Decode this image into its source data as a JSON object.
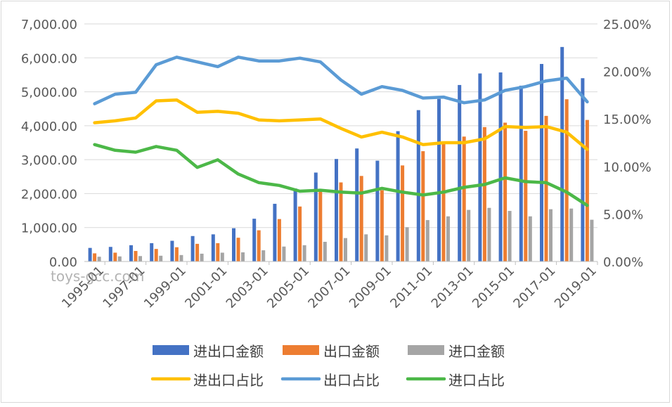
{
  "chart_data": {
    "type": "bar+line",
    "x": [
      "1995-01",
      "1996-01",
      "1997-01",
      "1998-01",
      "1999-01",
      "2000-01",
      "2001-01",
      "2002-01",
      "2003-01",
      "2004-01",
      "2005-01",
      "2006-01",
      "2007-01",
      "2008-01",
      "2009-01",
      "2010-01",
      "2011-01",
      "2012-01",
      "2013-01",
      "2014-01",
      "2015-01",
      "2016-01",
      "2017-01",
      "2018-01",
      "2019-01"
    ],
    "x_tick_labels": [
      "1995-01",
      "1997-01",
      "1999-01",
      "2001-01",
      "2003-01",
      "2005-01",
      "2007-01",
      "2009-01",
      "2011-01",
      "2013-01",
      "2015-01",
      "2017-01",
      "2019-01"
    ],
    "y_left": {
      "ylim": [
        0,
        7000
      ],
      "ticks": [
        "0.00",
        "1,000.00",
        "2,000.00",
        "3,000.00",
        "4,000.00",
        "5,000.00",
        "6,000.00",
        "7,000.00"
      ]
    },
    "y_right": {
      "ylim": [
        0,
        25
      ],
      "ticks": [
        "0.00%",
        "5.00%",
        "10.00%",
        "15.00%",
        "20.00%",
        "25.00%"
      ]
    },
    "bar_series": [
      {
        "name": "进出口金额",
        "color": "#4472c4",
        "values": [
          400,
          430,
          480,
          540,
          610,
          750,
          800,
          980,
          1260,
          1700,
          2150,
          2620,
          3020,
          3330,
          2970,
          3840,
          4460,
          4790,
          5200,
          5540,
          5570,
          5180,
          5820,
          6320,
          5400
        ]
      },
      {
        "name": "出口金额",
        "color": "#ed7d31",
        "values": [
          240,
          260,
          310,
          370,
          420,
          520,
          540,
          700,
          920,
          1250,
          1620,
          2050,
          2330,
          2520,
          2100,
          2830,
          3250,
          3470,
          3680,
          3960,
          4090,
          3850,
          4290,
          4780,
          4170
        ]
      },
      {
        "name": "进口金额",
        "color": "#a5a5a5",
        "values": [
          140,
          150,
          160,
          170,
          190,
          230,
          260,
          270,
          330,
          440,
          480,
          580,
          690,
          800,
          770,
          1010,
          1220,
          1330,
          1520,
          1580,
          1490,
          1330,
          1540,
          1560,
          1230
        ]
      }
    ],
    "line_series": [
      {
        "name": "进出口占比",
        "color": "#ffc000",
        "values": [
          14.6,
          14.8,
          15.1,
          16.9,
          17.0,
          15.7,
          15.8,
          15.6,
          14.9,
          14.8,
          14.9,
          15.0,
          14.0,
          13.1,
          13.6,
          13.1,
          12.3,
          12.5,
          12.5,
          12.9,
          14.2,
          14.1,
          14.2,
          13.6,
          11.8
        ]
      },
      {
        "name": "出口占比",
        "color": "#5b9bd5",
        "values": [
          16.6,
          17.6,
          17.8,
          20.7,
          21.5,
          21.0,
          20.5,
          21.5,
          21.1,
          21.1,
          21.4,
          21.0,
          19.1,
          17.6,
          18.4,
          18.0,
          17.2,
          17.3,
          16.7,
          17.0,
          18.0,
          18.4,
          19.0,
          19.3,
          16.8
        ]
      },
      {
        "name": "进口占比",
        "color": "#4cb848",
        "values": [
          12.3,
          11.7,
          11.5,
          12.1,
          11.7,
          9.9,
          10.7,
          9.2,
          8.3,
          8.0,
          7.4,
          7.5,
          7.3,
          7.2,
          7.7,
          7.3,
          7.0,
          7.3,
          7.8,
          8.1,
          8.8,
          8.4,
          8.3,
          7.3,
          5.9
        ]
      }
    ],
    "legend_position": "bottom",
    "grid": "horizontal"
  },
  "watermark": "toys-gcc.com"
}
